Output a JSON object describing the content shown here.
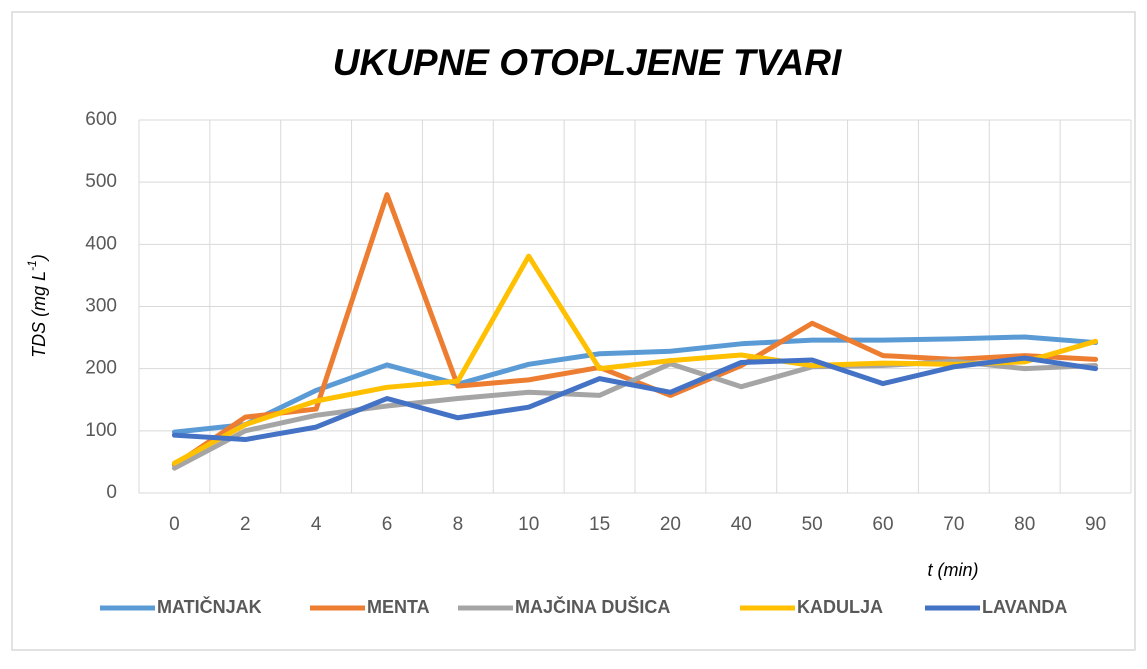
{
  "chart_data": {
    "type": "line",
    "title": "UKUPNE OTOPLJENE TVARI",
    "y_label": {
      "text": "TDS (mg L",
      "sup": "-1",
      "close": ")"
    },
    "x_label": "t (min)",
    "categories": [
      "0",
      "2",
      "4",
      "6",
      "8",
      "10",
      "15",
      "20",
      "40",
      "50",
      "60",
      "70",
      "80",
      "90"
    ],
    "series": [
      {
        "name": "MATIČNJAK",
        "color": "#5b9bd5",
        "values": [
          98,
          110,
          165,
          206,
          175,
          207,
          224,
          228,
          240,
          246,
          246,
          248,
          251,
          242
        ]
      },
      {
        "name": "MENTA",
        "color": "#ed7d31",
        "values": [
          45,
          122,
          135,
          480,
          172,
          182,
          202,
          157,
          205,
          273,
          221,
          215,
          221,
          215
        ]
      },
      {
        "name": "MAJČINA DUŠICA",
        "color": "#a5a5a5",
        "values": [
          40,
          100,
          125,
          140,
          152,
          162,
          157,
          208,
          171,
          203,
          205,
          212,
          200,
          205
        ]
      },
      {
        "name": "KADULJA",
        "color": "#ffc000",
        "values": [
          48,
          110,
          148,
          170,
          180,
          381,
          200,
          213,
          222,
          205,
          209,
          207,
          211,
          244
        ]
      },
      {
        "name": "LAVANDA",
        "color": "#4472c4",
        "values": [
          93,
          86,
          106,
          152,
          121,
          138,
          184,
          162,
          210,
          214,
          176,
          203,
          217,
          200
        ]
      }
    ],
    "ylim": [
      0,
      600
    ],
    "yticks": [
      0,
      100,
      200,
      300,
      400,
      500,
      600
    ],
    "grid": true,
    "legend": "bottom"
  }
}
